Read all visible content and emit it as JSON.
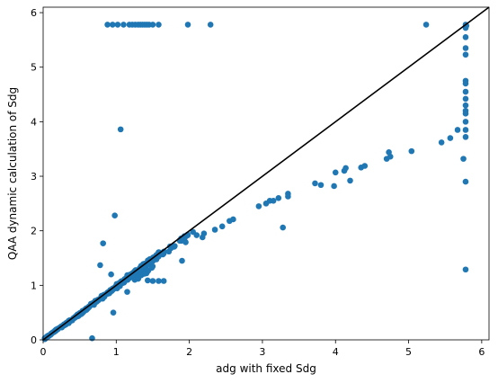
{
  "chart_data": {
    "type": "scatter",
    "xlabel": "adg with fixed Sdg",
    "ylabel": "QAA dynamic calculation of Sdg",
    "xlim": [
      0,
      6.1
    ],
    "ylim": [
      0,
      6.1
    ],
    "xticks": [
      0,
      1,
      2,
      3,
      4,
      5,
      6
    ],
    "yticks": [
      0,
      1,
      2,
      3,
      4,
      5,
      6
    ],
    "grid": false,
    "legend": "none",
    "colors": {
      "points": "#1f77b4",
      "line": "#000000",
      "axes": "#000000"
    },
    "reference_line": {
      "label": "1:1 line",
      "x": [
        0,
        6.1
      ],
      "y": [
        0,
        6.1
      ]
    },
    "clusters": [
      {
        "x0": 0.0,
        "x1": 0.25,
        "slope": 1.0,
        "intercept": 0.0,
        "count": 45,
        "scatter": 0.015
      },
      {
        "x0": 0.25,
        "x1": 0.6,
        "slope": 0.97,
        "intercept": -0.01,
        "count": 70,
        "scatter": 0.03
      },
      {
        "x0": 0.6,
        "x1": 1.0,
        "slope": 0.97,
        "intercept": 0.0,
        "count": 80,
        "scatter": 0.04
      },
      {
        "x0": 1.0,
        "x1": 1.6,
        "slope": 1.0,
        "intercept": -0.02,
        "count": 140,
        "scatter": 0.07
      },
      {
        "x0": 1.6,
        "x1": 2.0,
        "slope": 0.98,
        "intercept": -0.02,
        "count": 25,
        "scatter": 0.05
      },
      {
        "x0": 1.2,
        "x1": 1.5,
        "slope": 0.9,
        "intercept": -0.02,
        "count": 18,
        "scatter": 0.04
      }
    ],
    "points": [
      [
        0.67,
        0.03
      ],
      [
        0.96,
        0.5
      ],
      [
        0.78,
        1.37
      ],
      [
        0.82,
        1.77
      ],
      [
        0.93,
        1.2
      ],
      [
        1.06,
        3.86
      ],
      [
        0.98,
        2.28
      ],
      [
        1.9,
        1.45
      ],
      [
        0.88,
        5.78
      ],
      [
        0.95,
        5.78
      ],
      [
        1.02,
        5.78
      ],
      [
        1.1,
        5.78
      ],
      [
        1.18,
        5.78
      ],
      [
        1.22,
        5.78
      ],
      [
        1.26,
        5.78
      ],
      [
        1.3,
        5.78
      ],
      [
        1.33,
        5.78
      ],
      [
        1.36,
        5.78
      ],
      [
        1.39,
        5.78
      ],
      [
        1.42,
        5.78
      ],
      [
        1.45,
        5.78
      ],
      [
        1.5,
        5.78
      ],
      [
        1.58,
        5.78
      ],
      [
        1.98,
        5.78
      ],
      [
        2.29,
        5.78
      ],
      [
        5.24,
        5.78
      ],
      [
        1.43,
        1.09
      ],
      [
        1.5,
        1.08
      ],
      [
        1.58,
        1.08
      ],
      [
        1.65,
        1.08
      ],
      [
        1.3,
        1.12
      ],
      [
        1.15,
        0.88
      ],
      [
        1.72,
        1.62
      ],
      [
        1.8,
        1.72
      ],
      [
        1.95,
        1.79
      ],
      [
        2.05,
        1.98
      ],
      [
        2.1,
        1.92
      ],
      [
        2.2,
        1.95
      ],
      [
        2.18,
        1.88
      ],
      [
        2.35,
        2.02
      ],
      [
        2.45,
        2.08
      ],
      [
        2.55,
        2.18
      ],
      [
        2.6,
        2.21
      ],
      [
        2.95,
        2.45
      ],
      [
        3.05,
        2.5
      ],
      [
        3.1,
        2.55
      ],
      [
        3.15,
        2.55
      ],
      [
        3.22,
        2.6
      ],
      [
        3.35,
        2.68
      ],
      [
        3.35,
        2.63
      ],
      [
        3.28,
        2.06
      ],
      [
        3.72,
        2.87
      ],
      [
        3.8,
        2.84
      ],
      [
        3.98,
        2.82
      ],
      [
        4.0,
        3.07
      ],
      [
        4.12,
        3.1
      ],
      [
        4.14,
        3.15
      ],
      [
        4.2,
        2.92
      ],
      [
        4.35,
        3.16
      ],
      [
        4.4,
        3.19
      ],
      [
        4.7,
        3.32
      ],
      [
        4.73,
        3.44
      ],
      [
        4.75,
        3.36
      ],
      [
        5.04,
        3.46
      ],
      [
        5.45,
        3.62
      ],
      [
        5.57,
        3.7
      ],
      [
        5.67,
        3.85
      ],
      [
        5.78,
        5.78
      ],
      [
        5.79,
        5.76
      ],
      [
        5.78,
        5.72
      ],
      [
        5.78,
        5.55
      ],
      [
        5.78,
        5.35
      ],
      [
        5.78,
        5.23
      ],
      [
        5.78,
        4.75
      ],
      [
        5.78,
        4.7
      ],
      [
        5.78,
        4.55
      ],
      [
        5.78,
        4.42
      ],
      [
        5.78,
        4.3
      ],
      [
        5.78,
        4.2
      ],
      [
        5.78,
        4.15
      ],
      [
        5.78,
        4.0
      ],
      [
        5.78,
        3.85
      ],
      [
        5.78,
        3.72
      ],
      [
        5.75,
        3.32
      ],
      [
        5.78,
        2.9
      ],
      [
        5.78,
        1.29
      ]
    ]
  }
}
